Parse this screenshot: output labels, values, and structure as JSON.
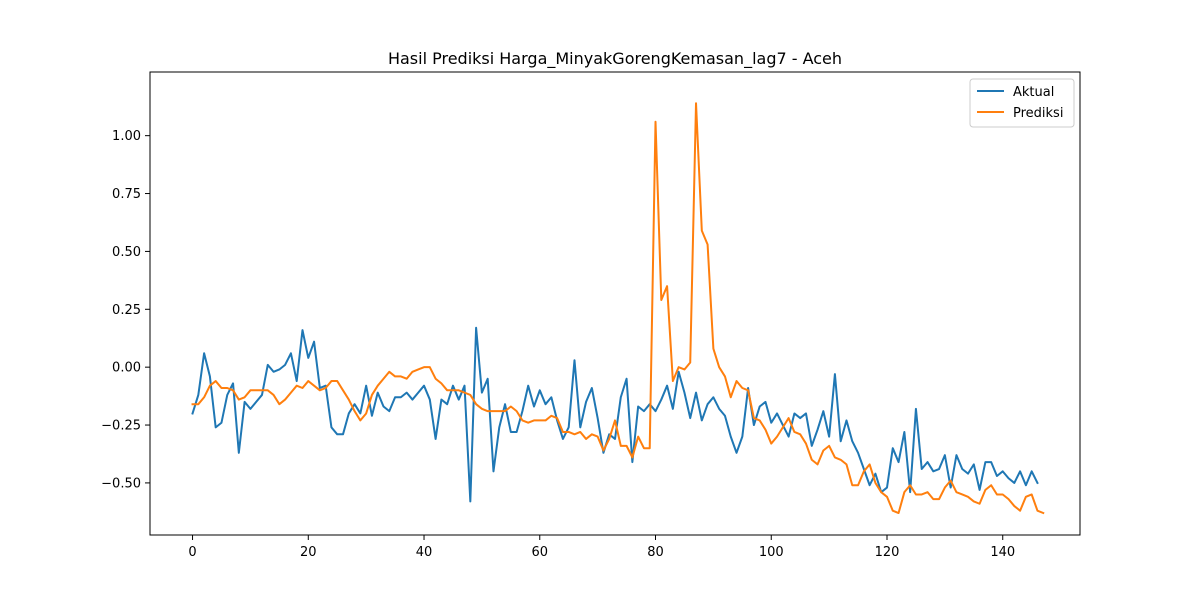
{
  "chart_data": {
    "type": "line",
    "title": "Hasil Prediksi Harga_MinyakGorengKemasan_lag7 - Aceh",
    "xlabel": "",
    "ylabel": "",
    "xlim": [
      -7.35,
      153.35
    ],
    "ylim": [
      -0.725,
      1.275
    ],
    "xticks": [
      0,
      20,
      40,
      60,
      80,
      100,
      120,
      140
    ],
    "yticks": [
      -0.5,
      -0.25,
      0.0,
      0.25,
      0.5,
      0.75,
      1.0
    ],
    "ytick_labels": [
      "−0.50",
      "−0.25",
      "0.00",
      "0.25",
      "0.50",
      "0.75",
      "1.00"
    ],
    "grid": false,
    "legend_position": "top-right",
    "series": [
      {
        "name": "Aktual",
        "color": "#1f77b4",
        "values": [
          -0.2,
          -0.12,
          0.06,
          -0.04,
          -0.26,
          -0.24,
          -0.12,
          -0.07,
          -0.37,
          -0.15,
          -0.18,
          -0.15,
          -0.12,
          0.01,
          -0.02,
          -0.01,
          0.01,
          0.06,
          -0.06,
          0.16,
          0.04,
          0.11,
          -0.09,
          -0.08,
          -0.26,
          -0.29,
          -0.29,
          -0.2,
          -0.16,
          -0.2,
          -0.08,
          -0.21,
          -0.11,
          -0.17,
          -0.19,
          -0.13,
          -0.13,
          -0.11,
          -0.14,
          -0.11,
          -0.08,
          -0.14,
          -0.31,
          -0.14,
          -0.16,
          -0.08,
          -0.14,
          -0.08,
          -0.58,
          0.17,
          -0.11,
          -0.05,
          -0.45,
          -0.26,
          -0.16,
          -0.28,
          -0.28,
          -0.19,
          -0.08,
          -0.17,
          -0.1,
          -0.16,
          -0.13,
          -0.23,
          -0.31,
          -0.26,
          0.03,
          -0.26,
          -0.15,
          -0.09,
          -0.22,
          -0.37,
          -0.29,
          -0.31,
          -0.13,
          -0.05,
          -0.41,
          -0.17,
          -0.19,
          -0.16,
          -0.19,
          -0.14,
          -0.08,
          -0.18,
          -0.02,
          -0.11,
          -0.22,
          -0.11,
          -0.23,
          -0.16,
          -0.13,
          -0.18,
          -0.21,
          -0.3,
          -0.37,
          -0.3,
          -0.09,
          -0.25,
          -0.17,
          -0.15,
          -0.24,
          -0.2,
          -0.25,
          -0.3,
          -0.2,
          -0.22,
          -0.2,
          -0.34,
          -0.27,
          -0.19,
          -0.3,
          -0.03,
          -0.32,
          -0.23,
          -0.32,
          -0.37,
          -0.44,
          -0.51,
          -0.46,
          -0.54,
          -0.52,
          -0.35,
          -0.41,
          -0.28,
          -0.54,
          -0.18,
          -0.44,
          -0.41,
          -0.45,
          -0.44,
          -0.38,
          -0.52,
          -0.38,
          -0.44,
          -0.46,
          -0.42,
          -0.53,
          -0.41,
          -0.41,
          -0.47,
          -0.45,
          -0.48,
          -0.5,
          -0.45,
          -0.51,
          -0.45,
          -0.5
        ]
      },
      {
        "name": "Prediksi",
        "color": "#ff7f0e",
        "values": [
          -0.16,
          -0.16,
          -0.13,
          -0.08,
          -0.06,
          -0.09,
          -0.09,
          -0.1,
          -0.14,
          -0.13,
          -0.1,
          -0.1,
          -0.1,
          -0.1,
          -0.12,
          -0.16,
          -0.14,
          -0.11,
          -0.08,
          -0.09,
          -0.06,
          -0.08,
          -0.1,
          -0.09,
          -0.06,
          -0.06,
          -0.1,
          -0.14,
          -0.19,
          -0.23,
          -0.2,
          -0.12,
          -0.08,
          -0.05,
          -0.02,
          -0.04,
          -0.04,
          -0.05,
          -0.02,
          -0.01,
          0.0,
          0.0,
          -0.05,
          -0.07,
          -0.1,
          -0.1,
          -0.1,
          -0.11,
          -0.12,
          -0.16,
          -0.18,
          -0.19,
          -0.19,
          -0.19,
          -0.19,
          -0.17,
          -0.19,
          -0.23,
          -0.24,
          -0.23,
          -0.23,
          -0.23,
          -0.21,
          -0.22,
          -0.28,
          -0.28,
          -0.29,
          -0.28,
          -0.31,
          -0.29,
          -0.3,
          -0.36,
          -0.31,
          -0.23,
          -0.34,
          -0.34,
          -0.39,
          -0.3,
          -0.35,
          -0.35,
          1.06,
          0.29,
          0.35,
          -0.06,
          0.0,
          -0.01,
          0.02,
          1.14,
          0.59,
          0.53,
          0.08,
          0.0,
          -0.04,
          -0.13,
          -0.06,
          -0.09,
          -0.1,
          -0.22,
          -0.23,
          -0.27,
          -0.33,
          -0.3,
          -0.26,
          -0.22,
          -0.28,
          -0.29,
          -0.33,
          -0.4,
          -0.42,
          -0.36,
          -0.34,
          -0.39,
          -0.4,
          -0.42,
          -0.51,
          -0.51,
          -0.45,
          -0.42,
          -0.5,
          -0.54,
          -0.56,
          -0.62,
          -0.63,
          -0.54,
          -0.51,
          -0.55,
          -0.55,
          -0.54,
          -0.57,
          -0.57,
          -0.52,
          -0.49,
          -0.54,
          -0.55,
          -0.56,
          -0.58,
          -0.59,
          -0.53,
          -0.51,
          -0.55,
          -0.55,
          -0.57,
          -0.6,
          -0.62,
          -0.56,
          -0.55,
          -0.62,
          -0.63
        ]
      }
    ]
  }
}
